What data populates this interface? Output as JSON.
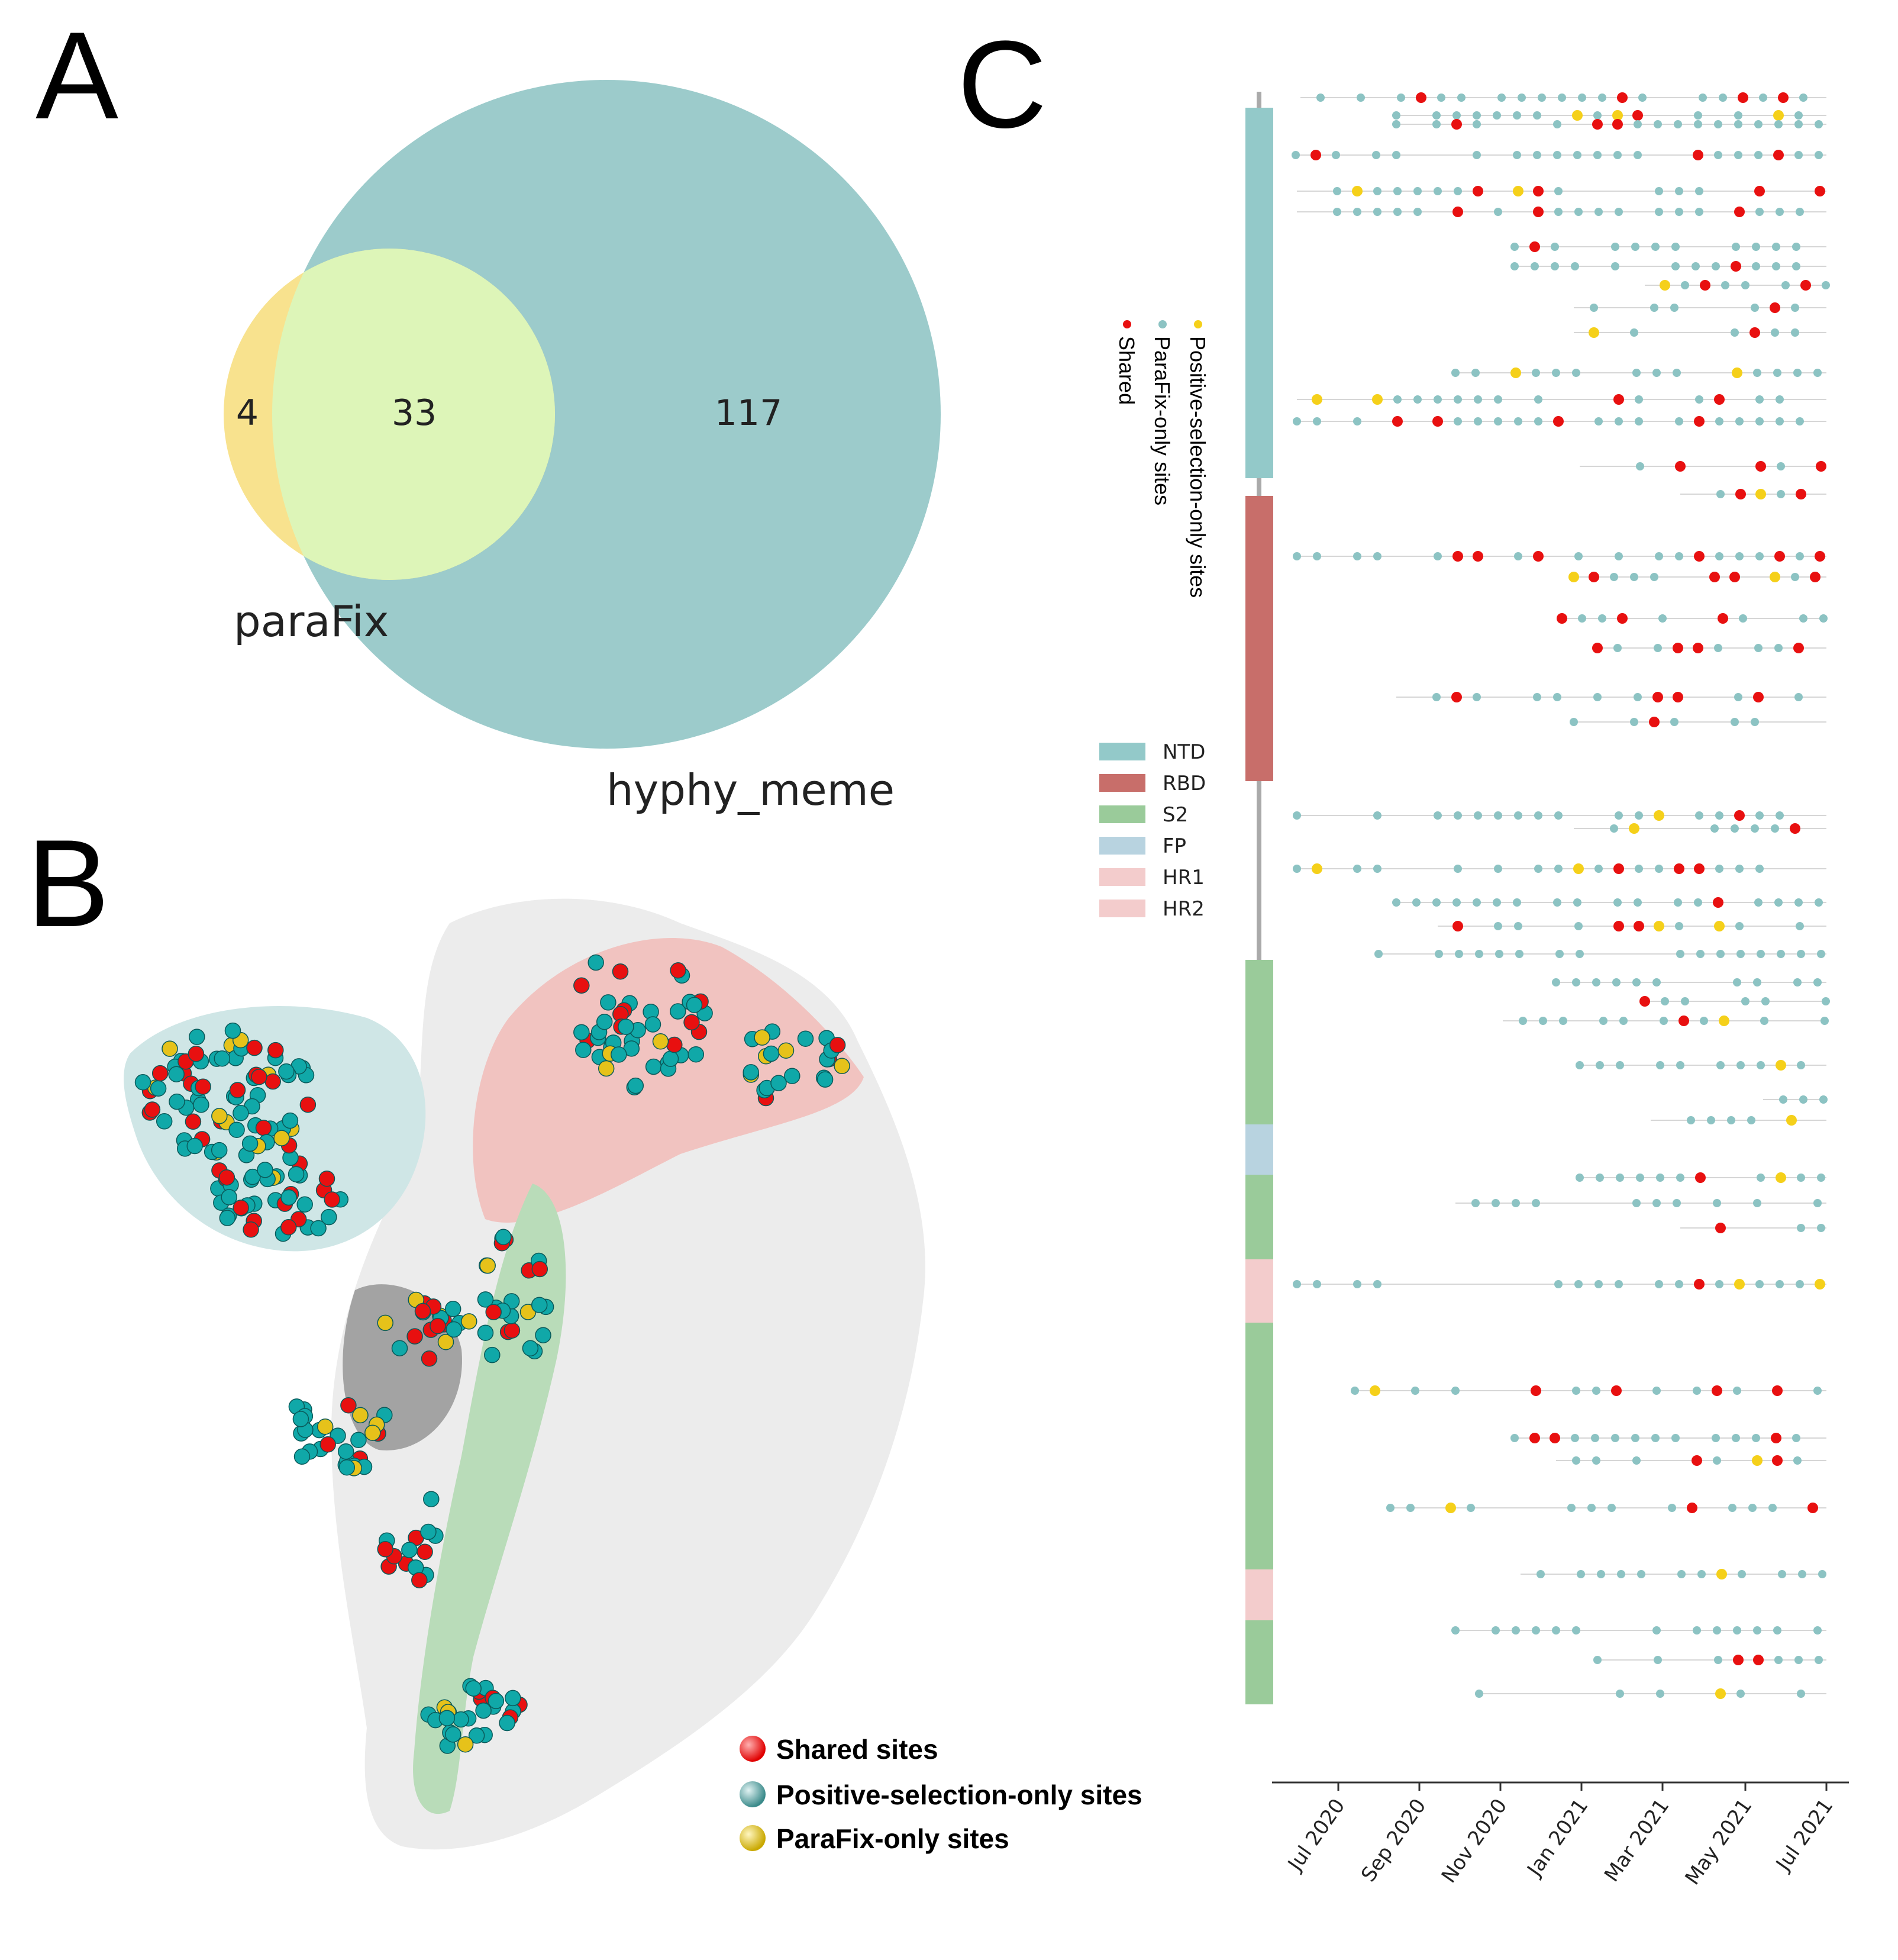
{
  "panels": {
    "a": "A",
    "b": "B",
    "c": "C"
  },
  "venn": {
    "left_only": "4",
    "overlap": "33",
    "right_only": "117",
    "left_label": "paraFix",
    "right_label": "hyphy_meme",
    "colors": {
      "left": "#f8e28e",
      "right": "#9ccbcb",
      "overlap": "#ddf5b8"
    }
  },
  "structure_legend": {
    "shared": "Shared sites",
    "positive": "Positive-selection-only sites",
    "parafix": "ParaFix-only sites"
  },
  "domain_legend": [
    {
      "label": "NTD",
      "color": "#93c9c9"
    },
    {
      "label": "RBD",
      "color": "#c86e6a"
    },
    {
      "label": "S2",
      "color": "#9acb9a"
    },
    {
      "label": "FP",
      "color": "#b8d3e0"
    },
    {
      "label": "HR1",
      "color": "#f3cccc"
    },
    {
      "label": "HR2",
      "color": "#f3cccc"
    }
  ],
  "site_legend": {
    "positive": "Positive-selection-only sites",
    "parafix": "ParaFix-only sites",
    "shared": "Shared"
  },
  "timeline": {
    "ticks": [
      "Jul 2020",
      "Sep 2020",
      "Nov 2020",
      "Jan 2021",
      "Mar 2021",
      "May 2021",
      "Jul 2021"
    ],
    "colors": {
      "positive": "#8cc3c3",
      "parafix": "#f5d01a",
      "shared": "#e81010"
    }
  }
}
